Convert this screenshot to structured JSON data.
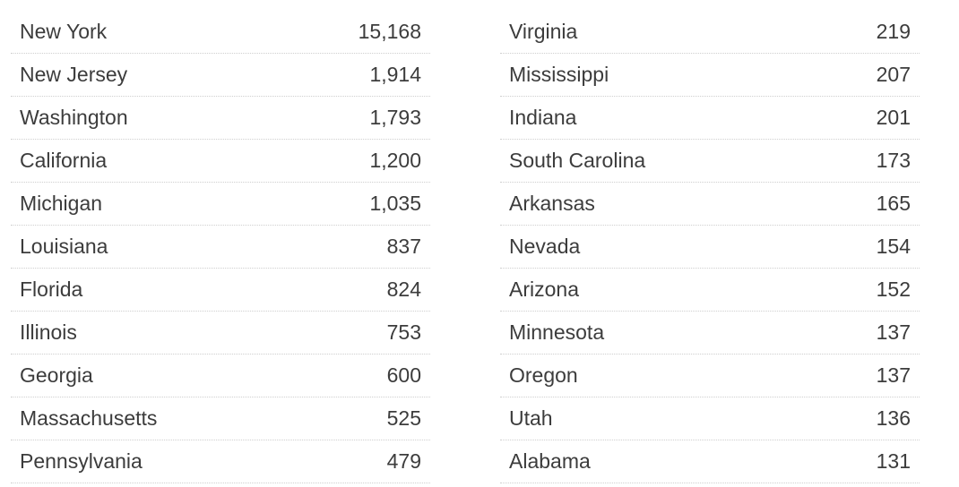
{
  "chart_data": {
    "type": "table",
    "columns": [
      {
        "rows": [
          {
            "label": "New York",
            "value": "15,168"
          },
          {
            "label": "New Jersey",
            "value": "1,914"
          },
          {
            "label": "Washington",
            "value": "1,793"
          },
          {
            "label": "California",
            "value": "1,200"
          },
          {
            "label": "Michigan",
            "value": "1,035"
          },
          {
            "label": "Louisiana",
            "value": "837"
          },
          {
            "label": "Florida",
            "value": "824"
          },
          {
            "label": "Illinois",
            "value": "753"
          },
          {
            "label": "Georgia",
            "value": "600"
          },
          {
            "label": "Massachusetts",
            "value": "525"
          },
          {
            "label": "Pennsylvania",
            "value": "479"
          }
        ]
      },
      {
        "rows": [
          {
            "label": "Virginia",
            "value": "219"
          },
          {
            "label": "Mississippi",
            "value": "207"
          },
          {
            "label": "Indiana",
            "value": "201"
          },
          {
            "label": "South Carolina",
            "value": "173"
          },
          {
            "label": "Arkansas",
            "value": "165"
          },
          {
            "label": "Nevada",
            "value": "154"
          },
          {
            "label": "Arizona",
            "value": "152"
          },
          {
            "label": "Minnesota",
            "value": "137"
          },
          {
            "label": "Oregon",
            "value": "137"
          },
          {
            "label": "Utah",
            "value": "136"
          },
          {
            "label": "Alabama",
            "value": "131"
          }
        ]
      }
    ]
  }
}
